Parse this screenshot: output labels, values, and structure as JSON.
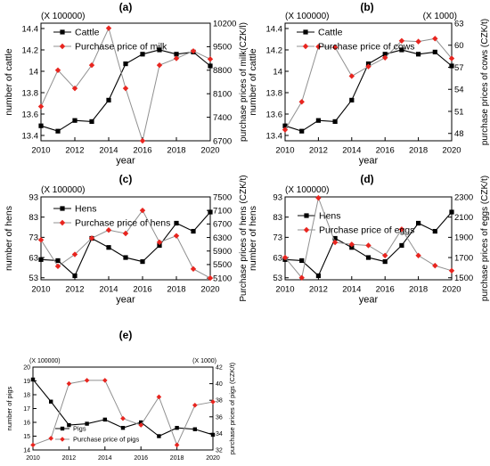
{
  "chart_data": [
    {
      "type": "line",
      "panel_label": "(a)",
      "xlabel": "year",
      "ylabel": "number of cattle",
      "y2label": "purchase prices of milk(CZK/l)",
      "multiplier": "(X 100000)",
      "x": [
        2010,
        2011,
        2012,
        2013,
        2014,
        2015,
        2016,
        2017,
        2018,
        2019,
        2020
      ],
      "xticks": [
        "2010",
        "2012",
        "2014",
        "2016",
        "2018",
        "2020"
      ],
      "ylim": [
        13.35,
        14.45
      ],
      "yticks": [
        "13.4",
        "13.6",
        "13.8",
        "14",
        "14.2",
        "14.4"
      ],
      "y2lim": [
        6700,
        10200
      ],
      "y2ticks": [
        "6700",
        "7400",
        "8100",
        "8800",
        "9500",
        "10200"
      ],
      "legend_position": "top-left",
      "series": [
        {
          "name": "Cattle",
          "axis": "left",
          "color": "#000000",
          "marker": "square",
          "values": [
            13.49,
            13.44,
            13.54,
            13.53,
            13.73,
            14.07,
            14.16,
            14.2,
            14.16,
            14.18,
            14.05
          ]
        },
        {
          "name": "Purchase price of milk",
          "axis": "right",
          "color": "#e8251f",
          "marker": "diamond",
          "values": [
            7720,
            8800,
            8260,
            8950,
            10050,
            8260,
            6700,
            8950,
            9150,
            9370,
            9130
          ]
        }
      ]
    },
    {
      "type": "line",
      "panel_label": "(b)",
      "xlabel": "year",
      "ylabel": "number of cattle",
      "y2label": "purchase prices of cows (CZK/t)",
      "multiplier": "(X 100000)",
      "y2multiplier": "(X 1000)",
      "x": [
        2010,
        2011,
        2012,
        2013,
        2014,
        2015,
        2016,
        2017,
        2018,
        2019,
        2020
      ],
      "xticks": [
        "2010",
        "2012",
        "2014",
        "2016",
        "2018",
        "2020"
      ],
      "ylim": [
        13.35,
        14.45
      ],
      "yticks": [
        "13.4",
        "13.6",
        "13.8",
        "14",
        "14.2",
        "14.4"
      ],
      "y2lim": [
        47,
        63
      ],
      "y2ticks": [
        "48",
        "51",
        "54",
        "57",
        "60",
        "63"
      ],
      "legend_position": "top-left",
      "series": [
        {
          "name": "Cattle",
          "axis": "left",
          "color": "#000000",
          "marker": "square",
          "values": [
            13.49,
            13.44,
            13.54,
            13.53,
            13.73,
            14.07,
            14.16,
            14.2,
            14.16,
            14.18,
            14.05
          ]
        },
        {
          "name": "Purchase price of cows",
          "axis": "right",
          "color": "#e8251f",
          "marker": "diamond",
          "values": [
            48.5,
            52.3,
            59.8,
            59.7,
            55.8,
            57.1,
            58.3,
            60.6,
            60.5,
            60.9,
            58.2
          ]
        }
      ]
    },
    {
      "type": "line",
      "panel_label": "(c)",
      "xlabel": "year",
      "ylabel": "number of hens",
      "y2label": "Purchase prices of hens (CZK/t)",
      "multiplier": "(X 100000)",
      "x": [
        2010,
        2011,
        2012,
        2013,
        2014,
        2015,
        2016,
        2017,
        2018,
        2019,
        2020
      ],
      "xticks": [
        "2010",
        "2012",
        "2014",
        "2016",
        "2018",
        "2020"
      ],
      "ylim": [
        52,
        93
      ],
      "yticks": [
        "53",
        "63",
        "73",
        "83",
        "93"
      ],
      "y2lim": [
        5050,
        7500
      ],
      "y2ticks": [
        "5100",
        "5500",
        "5900",
        "6300",
        "6700",
        "7100",
        "7500"
      ],
      "legend_position": "top-left",
      "series": [
        {
          "name": "Hens",
          "axis": "left",
          "color": "#000000",
          "marker": "square",
          "values": [
            62,
            61.5,
            54,
            72.5,
            68,
            63,
            61,
            69,
            80,
            76,
            85.5
          ]
        },
        {
          "name": "Purchase price of hens",
          "axis": "right",
          "color": "#e8251f",
          "marker": "diamond",
          "values": [
            6230,
            5450,
            5800,
            6280,
            6520,
            6420,
            7100,
            6160,
            6350,
            5370,
            5100
          ]
        }
      ]
    },
    {
      "type": "line",
      "panel_label": "(d)",
      "xlabel": "year",
      "ylabel": "number of hens",
      "y2label": "purchase prices of eggs (CZK/t)",
      "multiplier": "(X 100000)",
      "x": [
        2010,
        2011,
        2012,
        2013,
        2014,
        2015,
        2016,
        2017,
        2018,
        2019,
        2020
      ],
      "xticks": [
        "2010",
        "2012",
        "2014",
        "2016",
        "2018",
        "2020"
      ],
      "ylim": [
        52,
        93
      ],
      "yticks": [
        "53",
        "63",
        "73",
        "83",
        "93"
      ],
      "y2lim": [
        1480,
        2300
      ],
      "y2ticks": [
        "1500",
        "1700",
        "1900",
        "2100",
        "2300"
      ],
      "legend_position": "top-left",
      "series": [
        {
          "name": "Hens",
          "axis": "left",
          "color": "#000000",
          "marker": "square",
          "values": [
            62,
            61.5,
            54,
            72.5,
            68,
            63,
            61,
            69,
            80,
            76,
            85.5
          ]
        },
        {
          "name": "Purchase price of eggs",
          "axis": "right",
          "color": "#e8251f",
          "marker": "diamond",
          "values": [
            1700,
            1500,
            2290,
            1850,
            1830,
            1820,
            1720,
            1980,
            1720,
            1620,
            1570
          ]
        }
      ]
    },
    {
      "type": "line",
      "panel_label": "(e)",
      "xlabel": "year",
      "ylabel": "number of pigs",
      "y2label": "purchase prices of pigs (CZK/t)",
      "multiplier": "(X 100000)",
      "y2multiplier": "(X 1000)",
      "x": [
        2010,
        2011,
        2012,
        2013,
        2014,
        2015,
        2016,
        2017,
        2018,
        2019,
        2020
      ],
      "xticks": [
        "2010",
        "2012",
        "2014",
        "2016",
        "2018",
        "2020"
      ],
      "ylim": [
        14,
        20
      ],
      "yticks": [
        "14",
        "15",
        "16",
        "17",
        "18",
        "19",
        "20"
      ],
      "y2lim": [
        32,
        42
      ],
      "y2ticks": [
        "32",
        "34",
        "36",
        "38",
        "40",
        "42"
      ],
      "legend_position": "bottom-left",
      "series": [
        {
          "name": "Pigs",
          "axis": "left",
          "color": "#000000",
          "marker": "square",
          "values": [
            19.1,
            17.5,
            15.8,
            15.9,
            16.2,
            15.6,
            16.0,
            15.0,
            15.6,
            15.5,
            15.1
          ]
        },
        {
          "name": "Purchase price of pigs",
          "axis": "right",
          "color": "#e8251f",
          "marker": "diamond",
          "values": [
            32.6,
            33.4,
            40.0,
            40.4,
            40.4,
            35.8,
            35.0,
            38.4,
            32.6,
            37.4,
            37.8
          ]
        }
      ]
    }
  ]
}
